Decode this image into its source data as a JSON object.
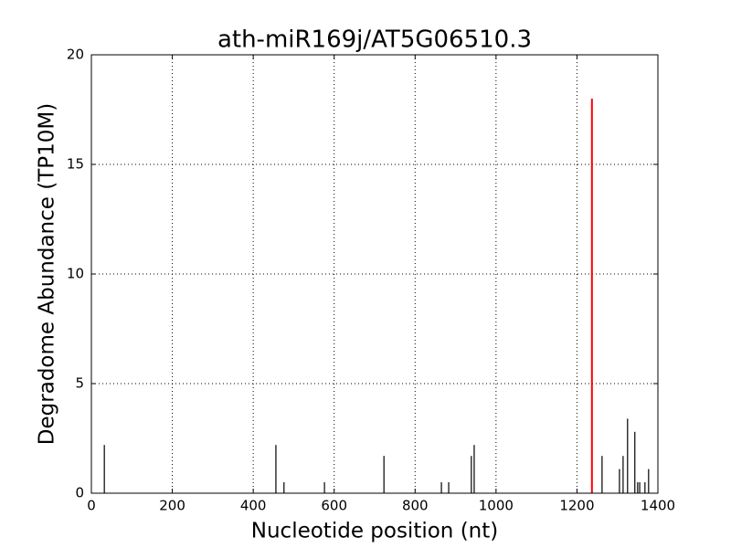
{
  "chart_data": {
    "type": "stem",
    "title": "ath-miR169j/AT5G06510.3",
    "xlabel": "Nucleotide position (nt)",
    "ylabel": "Degradome Abundance (TP10M)",
    "xlim": [
      0,
      1400
    ],
    "xticks": [
      0,
      200,
      400,
      600,
      800,
      1000,
      1200,
      1400
    ],
    "ylim": [
      0,
      20
    ],
    "yticks": [
      0,
      5,
      10,
      15,
      20
    ],
    "grid": true,
    "series": [
      {
        "color": "#000000",
        "x": [
          32,
          456,
          476,
          576,
          723,
          865,
          883,
          939,
          946,
          1262,
          1305,
          1314,
          1325,
          1343,
          1350,
          1355,
          1368,
          1377
        ],
        "values": [
          2.2,
          2.2,
          0.5,
          0.5,
          1.7,
          0.5,
          0.5,
          1.7,
          2.2,
          1.7,
          1.1,
          1.7,
          3.4,
          2.8,
          0.5,
          0.5,
          0.5,
          1.1
        ]
      },
      {
        "color": "#ff0000",
        "x": [
          1237
        ],
        "values": [
          18
        ]
      }
    ]
  }
}
